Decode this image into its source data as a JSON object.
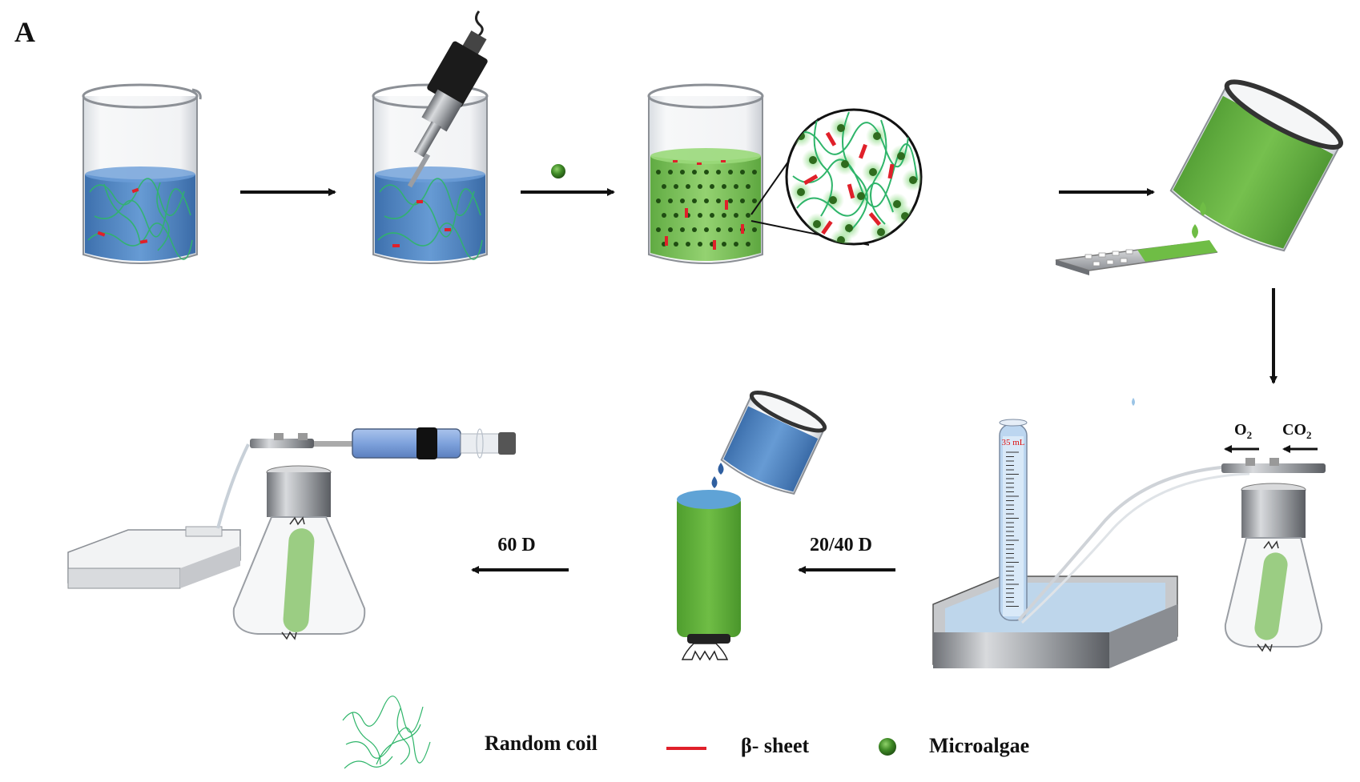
{
  "panel_label": "A",
  "steps": {
    "to_flask_day_label": "20/40 D",
    "to_tray_day_label": "60 D"
  },
  "cylinder": {
    "volume_label": "35 mL"
  },
  "gas": {
    "o2_label": "O",
    "o2_sub": "2",
    "co2_label": "CO",
    "co2_sub": "2"
  },
  "legend": {
    "random_coil": "Random coil",
    "beta_sheet": "β- sheet",
    "microalgae": "Microalgae"
  },
  "colors": {
    "water": "#3f7fc4",
    "gel_green": "#6fb947",
    "coil_green": "#2fb56a",
    "beta_red": "#e0202a",
    "algae_dark": "#2f6b1e"
  }
}
